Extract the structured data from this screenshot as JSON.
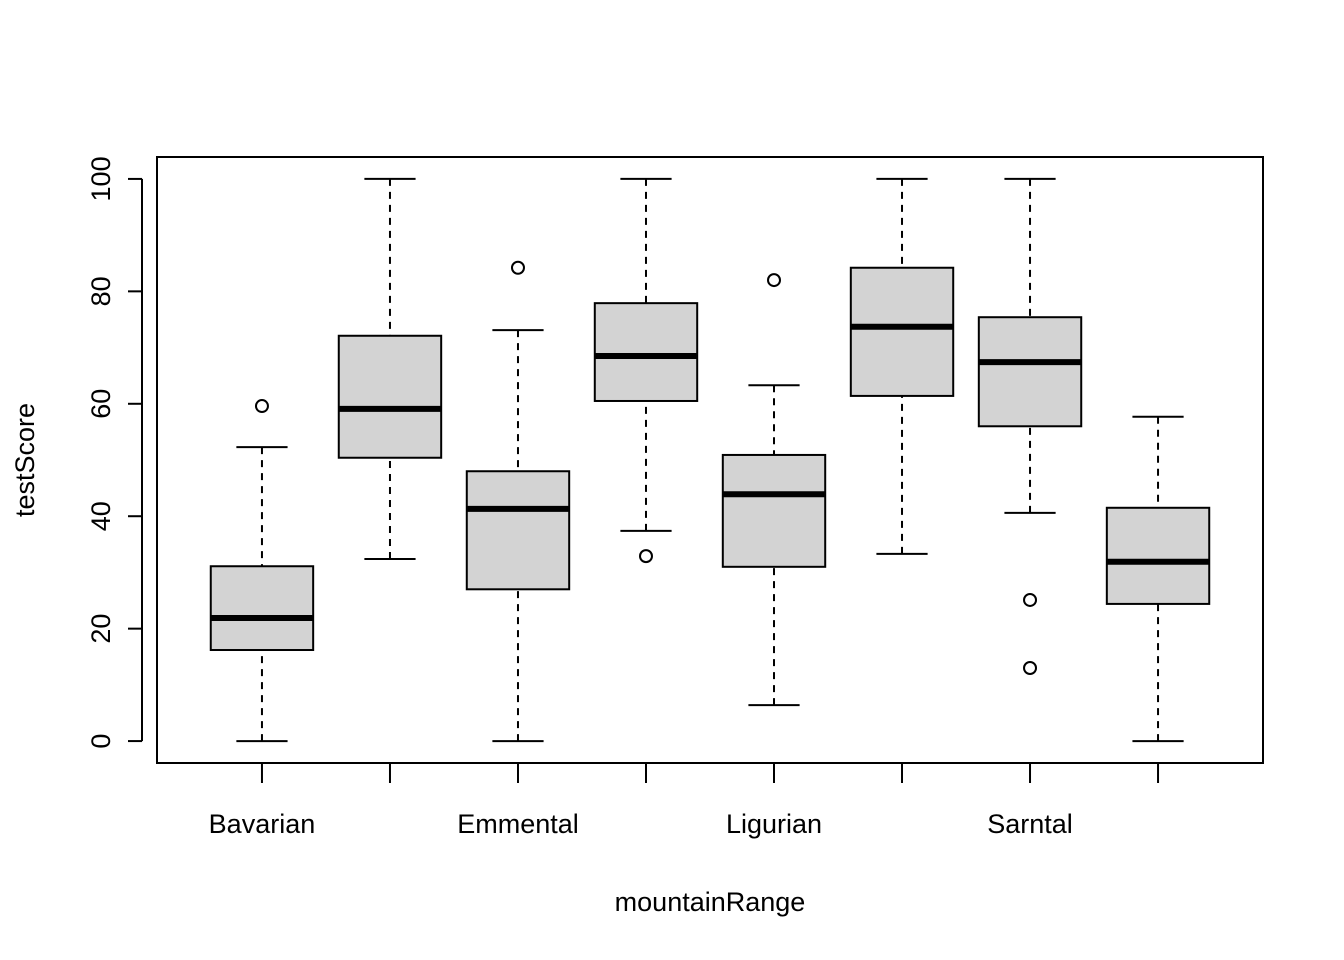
{
  "chart_data": {
    "type": "boxplot",
    "x_label": "mountainRange",
    "y_label": "testScore",
    "categories": [
      "Bavarian",
      null,
      "Emmental",
      null,
      "Ligurian",
      null,
      "Sarntal",
      null
    ],
    "color": "#d3d3d3",
    "ylim": [
      -3.9,
      103.9
    ],
    "yticks": [
      0,
      20,
      40,
      60,
      80,
      100
    ],
    "boxes": [
      {
        "low": 0,
        "q1": 16.2,
        "median": 21.9,
        "q3": 31.1,
        "high": 52.3,
        "outliers": [
          59.6
        ]
      },
      {
        "low": 32.4,
        "q1": 50.4,
        "median": 59.1,
        "q3": 72.1,
        "high": 100,
        "outliers": []
      },
      {
        "low": 0,
        "q1": 27.0,
        "median": 41.3,
        "q3": 48.0,
        "high": 73.1,
        "outliers": [
          84.2
        ]
      },
      {
        "low": 37.4,
        "q1": 60.5,
        "median": 68.5,
        "q3": 77.9,
        "high": 100,
        "outliers": [
          32.9
        ]
      },
      {
        "low": 6.4,
        "q1": 31.0,
        "median": 43.9,
        "q3": 50.9,
        "high": 63.3,
        "outliers": [
          82.0
        ]
      },
      {
        "low": 33.3,
        "q1": 61.4,
        "median": 73.7,
        "q3": 84.2,
        "high": 100,
        "outliers": []
      },
      {
        "low": 40.6,
        "q1": 56.0,
        "median": 67.4,
        "q3": 75.4,
        "high": 100,
        "outliers": [
          25.1,
          13.0
        ]
      },
      {
        "low": 0,
        "q1": 24.4,
        "median": 31.9,
        "q3": 41.5,
        "high": 57.7,
        "outliers": []
      }
    ]
  }
}
